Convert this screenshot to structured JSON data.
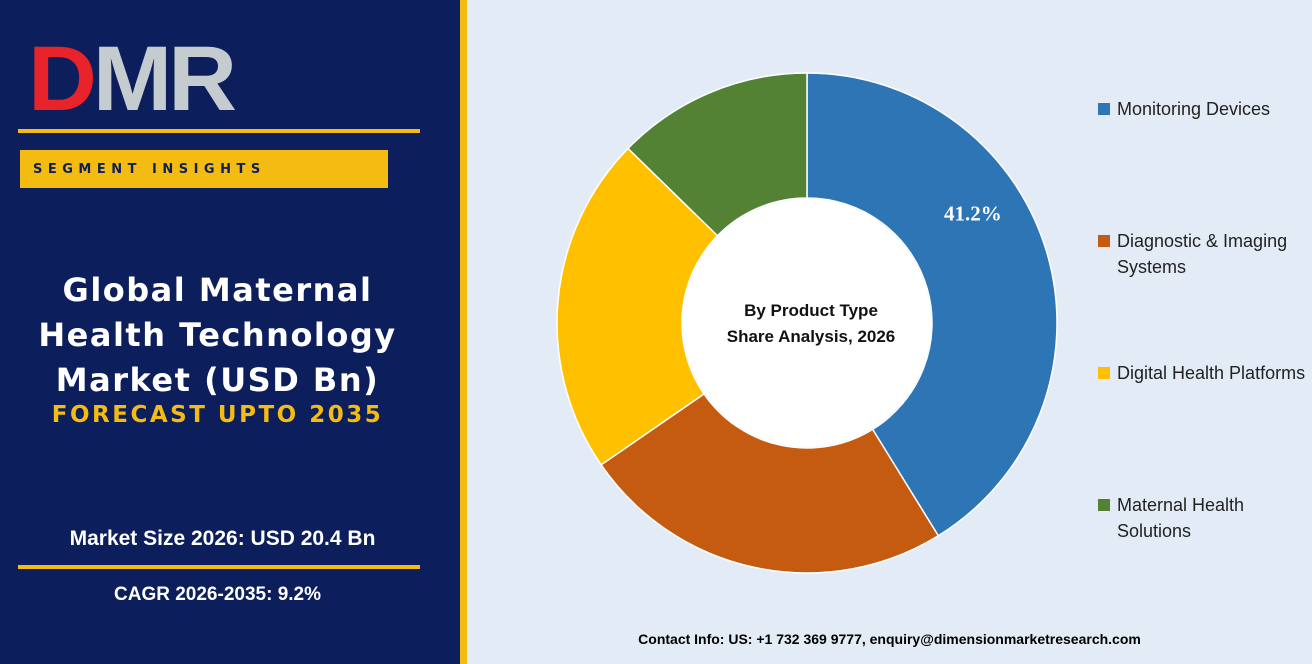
{
  "brand": {
    "logo_text": "DMR"
  },
  "left_panel": {
    "segment_banner": "SEGMENT INSIGHTS",
    "title_lines": [
      "Global Maternal",
      "Health Technology",
      "Market (USD Bn)"
    ],
    "forecast": "FORECAST UPTO 2035",
    "market_size": "Market Size 2026: USD 20.4 Bn",
    "cagr": "CAGR 2026-2035: 9.2%"
  },
  "chart_data": {
    "type": "pie",
    "donut": true,
    "center_label": [
      "By Product Type",
      "Share Analysis, 2026"
    ],
    "categories": [
      "Monitoring Devices",
      "Diagnostic & Imaging Systems",
      "Digital Health Platforms",
      "Maternal Health Solutions"
    ],
    "values": [
      41.2,
      24.2,
      21.9,
      12.7
    ],
    "data_labels": [
      "41.2%",
      null,
      null,
      null
    ],
    "colors": [
      "#2e75b6",
      "#c55a11",
      "#ffc000",
      "#548235"
    ],
    "legend_position": "right"
  },
  "legend": [
    {
      "label": "Monitoring Devices",
      "color": "#2e75b6"
    },
    {
      "label": "Diagnostic & Imaging Systems",
      "color": "#c55a11"
    },
    {
      "label": "Digital Health Platforms",
      "color": "#ffc000"
    },
    {
      "label": "Maternal Health Solutions",
      "color": "#548235"
    }
  ],
  "colors": {
    "panel_bg": "#0c1f5c",
    "accent": "#f4bb12",
    "chart_bg": "#e3ecf6",
    "logo_red": "#e8232a",
    "logo_gray": "#c5ccd0"
  },
  "footer": {
    "contact": "Contact Info: US: +1 732 369 9777, enquiry@dimensionmarketresearch.com"
  }
}
